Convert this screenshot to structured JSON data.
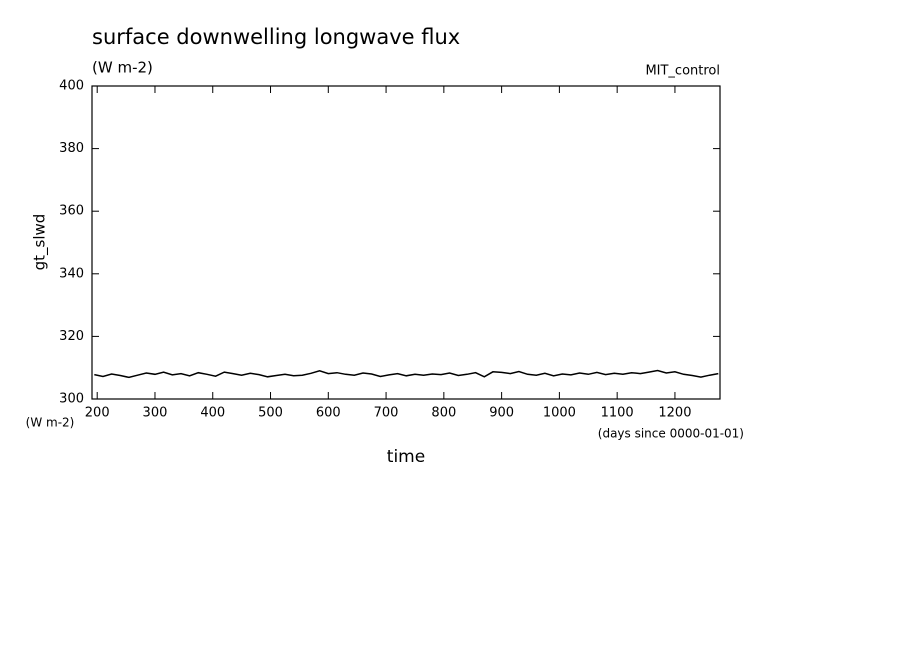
{
  "chart_data": {
    "type": "line",
    "title": "surface downwelling longwave flux",
    "subtitle": "(W m-2)",
    "run_label": "MIT_control",
    "y_label": "gt_slwd",
    "y_unit": "(W m-2)",
    "x_label": "time",
    "x_unit": "(days since 0000-01-01)",
    "color": "#000000",
    "xlim": [
      191,
      1278
    ],
    "ylim": [
      300,
      400
    ],
    "xticks": [
      200,
      300,
      400,
      500,
      600,
      700,
      800,
      900,
      1000,
      1100,
      1200
    ],
    "yticks": [
      300,
      320,
      340,
      360,
      380,
      400
    ],
    "x": [
      195,
      210,
      225,
      240,
      255,
      270,
      285,
      300,
      315,
      330,
      345,
      360,
      375,
      390,
      405,
      420,
      435,
      450,
      465,
      480,
      495,
      510,
      525,
      540,
      555,
      570,
      585,
      600,
      615,
      630,
      645,
      660,
      675,
      690,
      705,
      720,
      735,
      750,
      765,
      780,
      795,
      810,
      825,
      840,
      855,
      870,
      885,
      900,
      915,
      930,
      945,
      960,
      975,
      990,
      1005,
      1020,
      1035,
      1050,
      1065,
      1080,
      1095,
      1110,
      1125,
      1140,
      1155,
      1170,
      1185,
      1200,
      1215,
      1230,
      1245,
      1260,
      1275
    ],
    "values": [
      307.8,
      307.2,
      308.0,
      307.5,
      306.9,
      307.6,
      308.3,
      307.9,
      308.6,
      307.7,
      308.1,
      307.4,
      308.4,
      307.9,
      307.3,
      308.6,
      308.1,
      307.6,
      308.2,
      307.8,
      307.1,
      307.5,
      307.9,
      307.4,
      307.6,
      308.2,
      309.0,
      308.1,
      308.4,
      307.9,
      307.6,
      308.3,
      308.0,
      307.2,
      307.7,
      308.1,
      307.4,
      307.9,
      307.6,
      308.0,
      307.8,
      308.3,
      307.5,
      307.9,
      308.4,
      307.1,
      308.7,
      308.5,
      308.1,
      308.8,
      307.9,
      307.6,
      308.2,
      307.4,
      308.0,
      307.7,
      308.3,
      307.9,
      308.5,
      307.8,
      308.2,
      307.9,
      308.4,
      308.1,
      308.6,
      309.1,
      308.3,
      308.7,
      307.9,
      307.5,
      307.0,
      307.6,
      308.1
    ]
  }
}
